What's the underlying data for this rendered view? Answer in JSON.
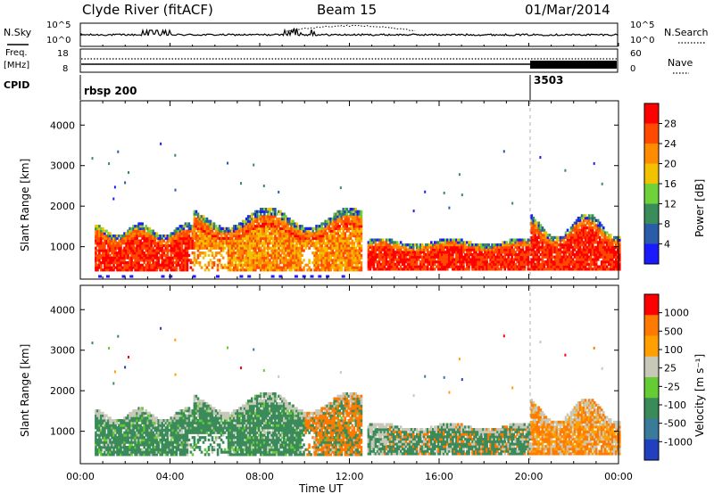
{
  "header": {
    "station": "Clyde River (fitACF)",
    "beam": "Beam 15",
    "date": "01/Mar/2014"
  },
  "top_panels": {
    "nsky_label": "N.Sky",
    "nsearch_label": "N.Search",
    "nsky_tick_top": "10^5",
    "nsky_tick_bottom": "10^0",
    "freq_label_line1": "Freq.",
    "freq_label_line2": "[MHz]",
    "freq_tick_top": "18",
    "freq_tick_bottom": "8",
    "nave_label": "Nave",
    "nave_tick_top": "60",
    "nave_tick_bottom": "0",
    "cpid_label": "CPID",
    "cpid_segments": [
      {
        "name": "rbsp 200",
        "start_h": 0
      },
      {
        "name": "3503",
        "start_h": 20.0
      }
    ]
  },
  "colors": {
    "power_scale": [
      "#1a1aff",
      "#2a5caa",
      "#3a8c5a",
      "#6fd23a",
      "#f2c200",
      "#ff8c00",
      "#ff4a00",
      "#ff0000"
    ],
    "velocity_scale": [
      "#2040c0",
      "#3a7a9a",
      "#3a8a5a",
      "#66cc33",
      "#c8c8b8",
      "#ffa000",
      "#ff7a00",
      "#ff0000"
    ]
  },
  "chart_data": [
    {
      "type": "heatmap",
      "panel": "power",
      "xlabel": "Time UT",
      "ylabel": "Slant Range [km]",
      "xlim": [
        0,
        24
      ],
      "ylim": [
        200,
        4600
      ],
      "yticks": [
        1000,
        2000,
        3000,
        4000
      ],
      "xtick_labels": [
        "00:00",
        "04:00",
        "08:00",
        "12:00",
        "16:00",
        "20:00",
        "00:00"
      ],
      "colorbar_label": "Power [dB]",
      "colorbar_ticks": [
        "28",
        "24",
        "20",
        "16",
        "12",
        "8",
        "4"
      ],
      "colorbar_range": [
        0,
        32
      ],
      "dashed_marker_time_h": 20.0,
      "scatter_regions": [
        {
          "t_start": 0.5,
          "t_end": 5.0,
          "range_lo": 400,
          "range_hi": 1500,
          "level": "high"
        },
        {
          "t_start": 5.0,
          "t_end": 12.5,
          "range_lo": 500,
          "range_hi": 2000,
          "level": "mid"
        },
        {
          "t_start": 12.8,
          "t_end": 20.0,
          "range_lo": 400,
          "range_hi": 1200,
          "level": "high"
        },
        {
          "t_start": 20.0,
          "t_end": 24.0,
          "range_lo": 400,
          "range_hi": 1900,
          "level": "mid"
        }
      ]
    },
    {
      "type": "heatmap",
      "panel": "velocity",
      "xlabel": "Time UT",
      "ylabel": "Slant Range [km]",
      "xlim": [
        0,
        24
      ],
      "ylim": [
        200,
        4600
      ],
      "yticks": [
        1000,
        2000,
        3000,
        4000
      ],
      "xtick_labels": [
        "00:00",
        "04:00",
        "08:00",
        "12:00",
        "16:00",
        "20:00",
        "00:00"
      ],
      "colorbar_label": "Velocity [m s⁻¹]",
      "colorbar_ticks": [
        "1000",
        "500",
        "100",
        "25",
        "-25",
        "-100",
        "-500",
        "-1000"
      ],
      "dashed_marker_time_h": 20.0
    }
  ]
}
